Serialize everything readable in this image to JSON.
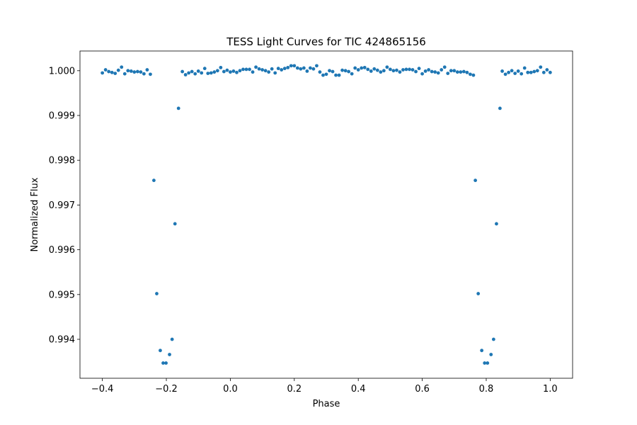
{
  "chart_data": {
    "type": "scatter",
    "title": "TESS Light Curves for TIC 424865156",
    "xlabel": "Phase",
    "ylabel": "Normalized Flux",
    "x": [
      -0.4,
      -0.39,
      -0.38,
      -0.37,
      -0.36,
      -0.35,
      -0.34,
      -0.33,
      -0.32,
      -0.31,
      -0.3,
      -0.29,
      -0.28,
      -0.27,
      -0.26,
      -0.25,
      -0.239,
      -0.23,
      -0.219,
      -0.21,
      -0.201,
      -0.19,
      -0.182,
      -0.173,
      -0.162,
      -0.15,
      -0.14,
      -0.13,
      -0.12,
      -0.11,
      -0.1,
      -0.09,
      -0.08,
      -0.07,
      -0.06,
      -0.05,
      -0.04,
      -0.03,
      -0.02,
      -0.01,
      0.0,
      0.01,
      0.02,
      0.03,
      0.04,
      0.05,
      0.06,
      0.07,
      0.08,
      0.09,
      0.1,
      0.11,
      0.12,
      0.13,
      0.14,
      0.15,
      0.16,
      0.17,
      0.18,
      0.19,
      0.2,
      0.21,
      0.22,
      0.23,
      0.24,
      0.25,
      0.26,
      0.27,
      0.28,
      0.29,
      0.3,
      0.31,
      0.32,
      0.33,
      0.34,
      0.35,
      0.36,
      0.37,
      0.38,
      0.39,
      0.4,
      0.41,
      0.42,
      0.43,
      0.44,
      0.45,
      0.46,
      0.47,
      0.48,
      0.49,
      0.5,
      0.51,
      0.52,
      0.53,
      0.54,
      0.55,
      0.56,
      0.57,
      0.58,
      0.59,
      0.6,
      0.61,
      0.62,
      0.63,
      0.64,
      0.65,
      0.66,
      0.67,
      0.68,
      0.69,
      0.7,
      0.71,
      0.72,
      0.73,
      0.74,
      0.75,
      0.76,
      0.766,
      0.775,
      0.786,
      0.795,
      0.804,
      0.815,
      0.823,
      0.832,
      0.843,
      0.85,
      0.86,
      0.87,
      0.88,
      0.89,
      0.9,
      0.91,
      0.92,
      0.93,
      0.94,
      0.95,
      0.96,
      0.97,
      0.98,
      0.99,
      1.0
    ],
    "series": [
      {
        "color": "#1f77b4",
        "values": [
          0.99995,
          1.00002,
          0.99998,
          0.99996,
          0.99994,
          1.00001,
          1.00008,
          0.99993,
          1.0,
          0.99999,
          0.99997,
          0.99998,
          0.99997,
          0.99993,
          1.00002,
          0.99992,
          0.99755,
          0.99502,
          0.99375,
          0.99347,
          0.99347,
          0.99366,
          0.994,
          0.99658,
          0.99916,
          0.99998,
          0.99991,
          0.99995,
          0.99998,
          0.99993,
          0.99999,
          0.99995,
          1.00005,
          0.99994,
          0.99995,
          0.99997,
          1.0,
          1.00007,
          0.99998,
          1.00001,
          0.99997,
          0.99999,
          0.99996,
          1.0,
          1.00003,
          1.00003,
          1.00003,
          0.99997,
          1.00008,
          1.00004,
          1.00002,
          1.0,
          0.99997,
          1.00004,
          0.99995,
          1.00005,
          1.00002,
          1.00005,
          1.00007,
          1.00011,
          1.00011,
          1.00006,
          1.00004,
          1.00006,
          0.99999,
          1.00006,
          1.00004,
          1.00011,
          0.99997,
          0.9999,
          0.99992,
          1.0,
          0.99998,
          0.9999,
          0.9999,
          1.00001,
          1.0,
          0.99998,
          0.99993,
          1.00006,
          1.00002,
          1.00006,
          1.00007,
          1.00003,
          0.99999,
          1.00004,
          1.00001,
          0.99997,
          1.0,
          1.00008,
          1.00003,
          1.0,
          1.00001,
          0.99997,
          1.00002,
          1.00003,
          1.00003,
          1.00002,
          0.99998,
          1.00005,
          0.99993,
          0.99999,
          1.00002,
          0.99998,
          0.99997,
          0.99995,
          1.00002,
          1.00008,
          0.99994,
          1.0,
          1.0,
          0.99997,
          0.99997,
          0.99998,
          0.99996,
          0.99992,
          0.9999,
          0.99755,
          0.99502,
          0.99375,
          0.99347,
          0.99347,
          0.99366,
          0.994,
          0.99658,
          0.99916,
          0.99999,
          0.99992,
          0.99996,
          1.0,
          0.99994,
          0.99999,
          0.99993,
          1.00006,
          0.99996,
          0.99996,
          0.99998,
          1.0,
          1.00008,
          0.99996,
          1.00002,
          0.99996
        ]
      }
    ],
    "xlim": [
      -0.47,
      1.07
    ],
    "ylim": [
      0.99313,
      1.00044
    ],
    "xticks": [
      {
        "value": -0.4,
        "label": "−0.4"
      },
      {
        "value": -0.2,
        "label": "−0.2"
      },
      {
        "value": 0,
        "label": "0.0"
      },
      0.2,
      0.4,
      0.6,
      0.8,
      {
        "value": 1,
        "label": "1.0"
      }
    ],
    "yticks": [
      0.994,
      0.995,
      0.996,
      0.997,
      0.998,
      0.999,
      {
        "value": 1,
        "label": "1.000"
      }
    ]
  }
}
